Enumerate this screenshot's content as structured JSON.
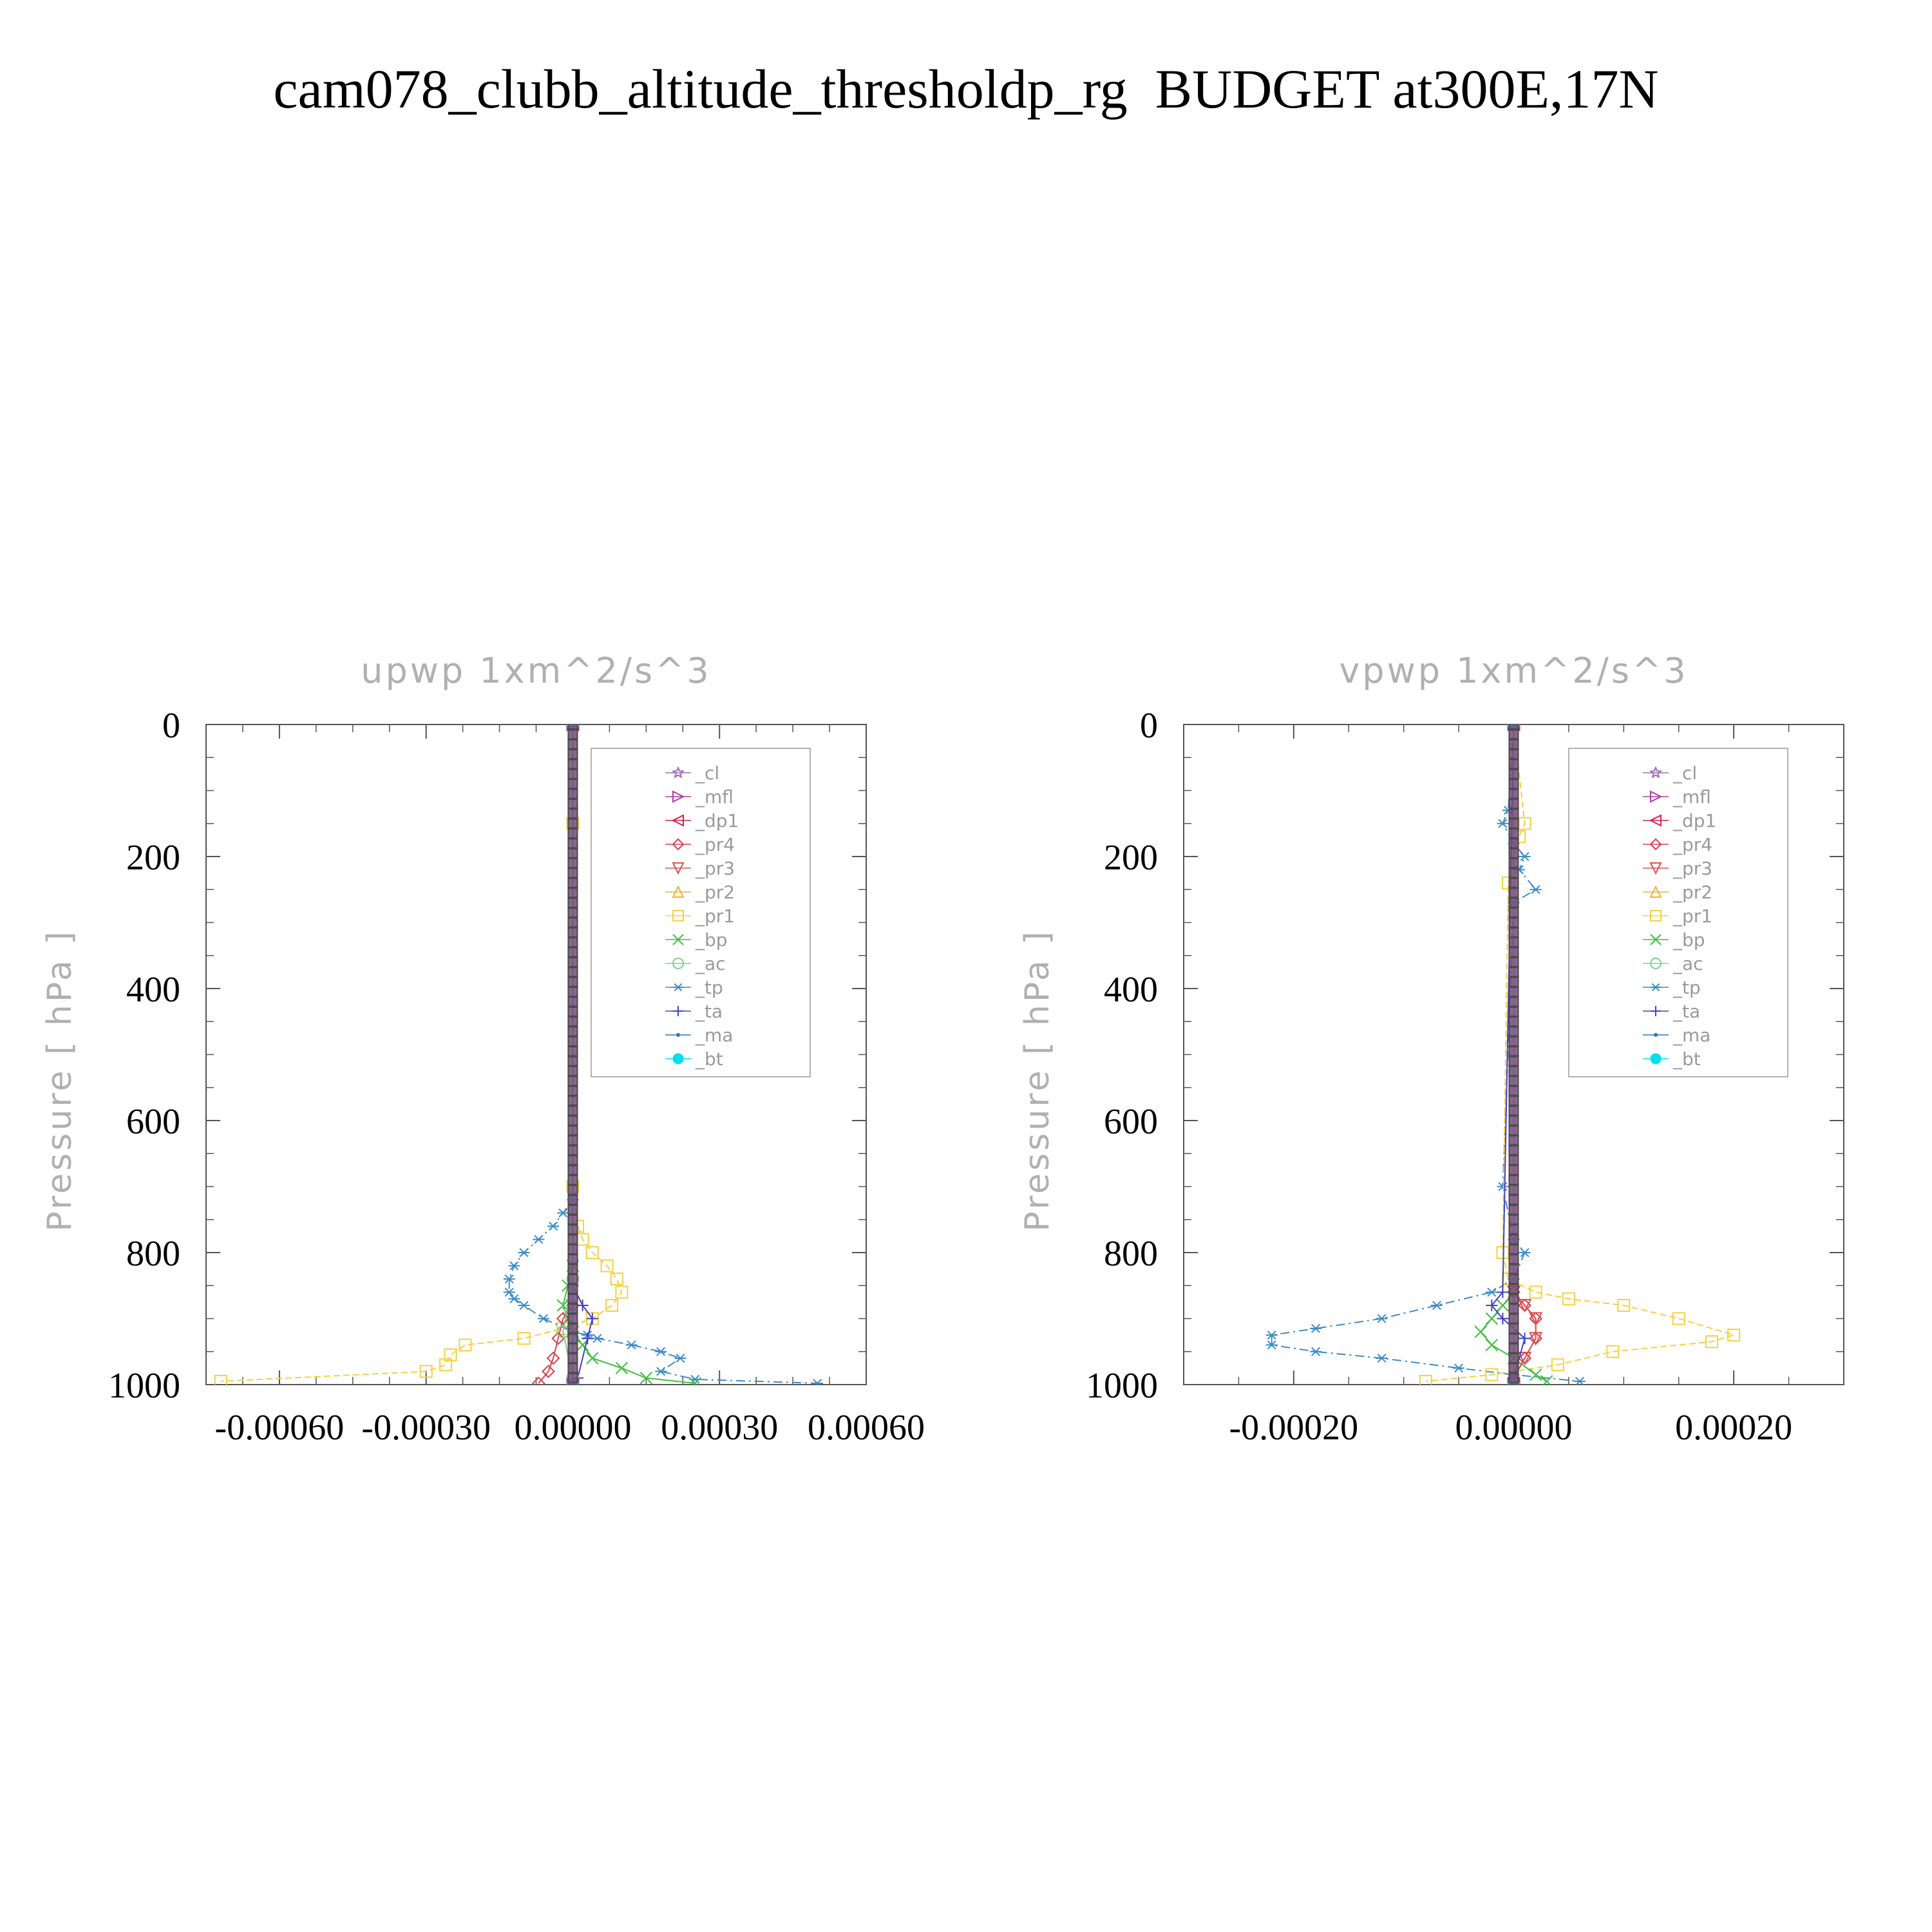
{
  "page_title": "cam078_clubb_altitude_thresholdp_rg  BUDGET at300E,17N",
  "colors": {
    "_cl": "#9c6bb5",
    "_mfl": "#b03aa8",
    "_dp1": "#c8284a",
    "_pr4": "#d8404f",
    "_pr3": "#e05050",
    "_pr2": "#f0b040",
    "_pr1": "#f5d040",
    "_bp": "#40c040",
    "_ac": "#80d090",
    "_tp": "#3c8cc8",
    "_ta": "#4040c8",
    "_ma": "#2878b4",
    "_bt": "#00e0f0",
    "frame": "#555555",
    "muted_text": "#b0b0b0"
  },
  "markers": {
    "_cl": "star",
    "_mfl": "triangle-right",
    "_dp1": "triangle-left",
    "_pr4": "diamond",
    "_pr3": "triangle-down",
    "_pr2": "triangle-up",
    "_pr1": "square",
    "_bp": "x",
    "_ac": "circle",
    "_tp": "asterisk",
    "_ta": "plus",
    "_ma": "dot",
    "_bt": "filled-circle"
  },
  "chart_data": [
    {
      "type": "line",
      "title": "upwp   1xm^2/s^3",
      "ylabel": "Pressure  [ hPa ]",
      "xlim": [
        -0.00075,
        0.0006
      ],
      "ylim": [
        0,
        1000
      ],
      "y_inverted": true,
      "x_ticks": [
        -0.0006,
        -0.0003,
        0.0,
        0.0003,
        0.0006
      ],
      "x_tick_labels": [
        "-0.00060",
        "-0.00030",
        "0.00000",
        "0.00030",
        "0.00060"
      ],
      "y_ticks": [
        0,
        200,
        400,
        600,
        800,
        1000
      ],
      "y_tick_labels": [
        "0",
        "200",
        "400",
        "600",
        "800",
        "1000"
      ],
      "legend": [
        "_cl",
        "_mfl",
        "_dp1",
        "_pr4",
        "_pr3",
        "_pr2",
        "_pr1",
        "_bp",
        "_ac",
        "_tp",
        "_ta",
        "_ma",
        "_bt"
      ],
      "legend_position": "top-right",
      "series": [
        {
          "name": "_pr1",
          "x": [
            0,
            0,
            0,
            1e-05,
            2e-05,
            4e-05,
            7e-05,
            9e-05,
            0.0001,
            8e-05,
            4e-05,
            -2e-05,
            -0.0001,
            -0.00022,
            -0.00025,
            -0.00026,
            -0.0003,
            -0.00072
          ],
          "y": [
            0,
            150,
            700,
            760,
            780,
            800,
            820,
            840,
            860,
            880,
            900,
            915,
            930,
            940,
            955,
            970,
            980,
            995
          ]
        },
        {
          "name": "_tp",
          "x": [
            0,
            0,
            -2e-05,
            -4e-05,
            -7e-05,
            -0.0001,
            -0.00012,
            -0.00013,
            -0.00013,
            -0.00012,
            -0.0001,
            -6e-05,
            0,
            3e-05,
            5e-05,
            0.00012,
            0.00018,
            0.00022,
            0.00018,
            0.00025,
            0.0005
          ],
          "y": [
            0,
            720,
            740,
            760,
            780,
            800,
            820,
            840,
            860,
            870,
            880,
            900,
            920,
            925,
            930,
            940,
            950,
            960,
            980,
            992,
            998
          ]
        },
        {
          "name": "_bp",
          "x": [
            0,
            0,
            -1e-05,
            -2e-05,
            -1e-05,
            0,
            2e-05,
            4e-05,
            0.0001,
            0.00015,
            0.00025
          ],
          "y": [
            0,
            820,
            850,
            880,
            900,
            920,
            940,
            960,
            975,
            990,
            998
          ]
        },
        {
          "name": "_pr4",
          "x": [
            0,
            0,
            -2e-05,
            -3e-05,
            -4e-05,
            -5e-05,
            -7e-05
          ],
          "y": [
            0,
            880,
            900,
            930,
            960,
            980,
            998
          ]
        },
        {
          "name": "_ta",
          "x": [
            0,
            0,
            2e-05,
            4e-05,
            3e-05,
            1e-05
          ],
          "y": [
            0,
            850,
            880,
            900,
            930,
            990
          ]
        },
        {
          "name": "_ac",
          "x": [
            0,
            0,
            -1e-05,
            -2e-05,
            0
          ],
          "y": [
            0,
            840,
            880,
            920,
            990
          ]
        },
        {
          "name": "_dp1",
          "x": [
            0,
            0
          ],
          "y": [
            0,
            1000
          ]
        },
        {
          "name": "_mfl",
          "x": [
            0,
            0
          ],
          "y": [
            0,
            1000
          ]
        },
        {
          "name": "_cl",
          "x": [
            0,
            0
          ],
          "y": [
            0,
            1000
          ]
        },
        {
          "name": "_bt",
          "x": [
            0,
            0
          ],
          "y": [
            0,
            1000
          ]
        }
      ]
    },
    {
      "type": "line",
      "title": "vpwp   1xm^2/s^3",
      "ylabel": "Pressure  [ hPa ]",
      "xlim": [
        -0.0003,
        0.0003
      ],
      "ylim": [
        0,
        1000
      ],
      "y_inverted": true,
      "x_ticks": [
        -0.0002,
        0.0,
        0.0002
      ],
      "x_tick_labels": [
        "-0.00020",
        "0.00000",
        "0.00020"
      ],
      "y_ticks": [
        0,
        200,
        400,
        600,
        800,
        1000
      ],
      "y_tick_labels": [
        "0",
        "200",
        "400",
        "600",
        "800",
        "1000"
      ],
      "legend": [
        "_cl",
        "_mfl",
        "_dp1",
        "_pr4",
        "_pr3",
        "_pr2",
        "_pr1",
        "_bp",
        "_ac",
        "_tp",
        "_ta",
        "_ma",
        "_bt"
      ],
      "legend_position": "top-right",
      "series": [
        {
          "name": "_tp",
          "x": [
            0,
            -5e-06,
            -1e-05,
            0,
            1e-05,
            5e-06,
            2e-05,
            0,
            -1e-05,
            0,
            1e-05,
            0,
            -2e-05,
            -7e-05,
            -0.00012,
            -0.00018,
            -0.00022,
            -0.00022,
            -0.00018,
            -0.00012,
            -5e-05,
            0,
            6e-05
          ],
          "y": [
            0,
            130,
            150,
            180,
            200,
            220,
            250,
            270,
            700,
            780,
            800,
            840,
            860,
            880,
            900,
            915,
            925,
            940,
            950,
            960,
            975,
            985,
            995
          ]
        },
        {
          "name": "_pr1",
          "x": [
            0,
            1e-05,
            5e-06,
            -5e-06,
            -1e-05,
            -5e-06,
            2e-05,
            5e-05,
            0.0001,
            0.00015,
            0.0002,
            0.00018,
            9e-05,
            4e-05,
            -2e-05,
            -8e-05
          ],
          "y": [
            0,
            150,
            170,
            240,
            800,
            840,
            860,
            870,
            880,
            900,
            925,
            935,
            950,
            970,
            985,
            995
          ]
        },
        {
          "name": "_bp",
          "x": [
            0,
            0,
            -1e-05,
            -2e-05,
            -3e-05,
            -2e-05,
            0,
            2e-05,
            3e-05
          ],
          "y": [
            0,
            860,
            880,
            900,
            920,
            940,
            960,
            985,
            995
          ]
        },
        {
          "name": "_pr4",
          "x": [
            0,
            0,
            1e-05,
            2e-05,
            2e-05,
            1e-05,
            0
          ],
          "y": [
            0,
            860,
            880,
            900,
            930,
            960,
            990
          ]
        },
        {
          "name": "_pr3",
          "x": [
            0,
            0,
            1e-05,
            2e-05,
            2e-05,
            1e-05
          ],
          "y": [
            0,
            860,
            880,
            900,
            930,
            960
          ]
        },
        {
          "name": "_ta",
          "x": [
            0,
            -1e-05,
            -2e-05,
            -1e-05,
            1e-05,
            0
          ],
          "y": [
            0,
            860,
            880,
            900,
            930,
            990
          ]
        },
        {
          "name": "_dp1",
          "x": [
            0,
            0
          ],
          "y": [
            0,
            1000
          ]
        },
        {
          "name": "_mfl",
          "x": [
            0,
            0
          ],
          "y": [
            0,
            1000
          ]
        },
        {
          "name": "_cl",
          "x": [
            0,
            0
          ],
          "y": [
            0,
            1000
          ]
        },
        {
          "name": "_bt",
          "x": [
            0,
            0
          ],
          "y": [
            0,
            1000
          ]
        }
      ]
    }
  ]
}
